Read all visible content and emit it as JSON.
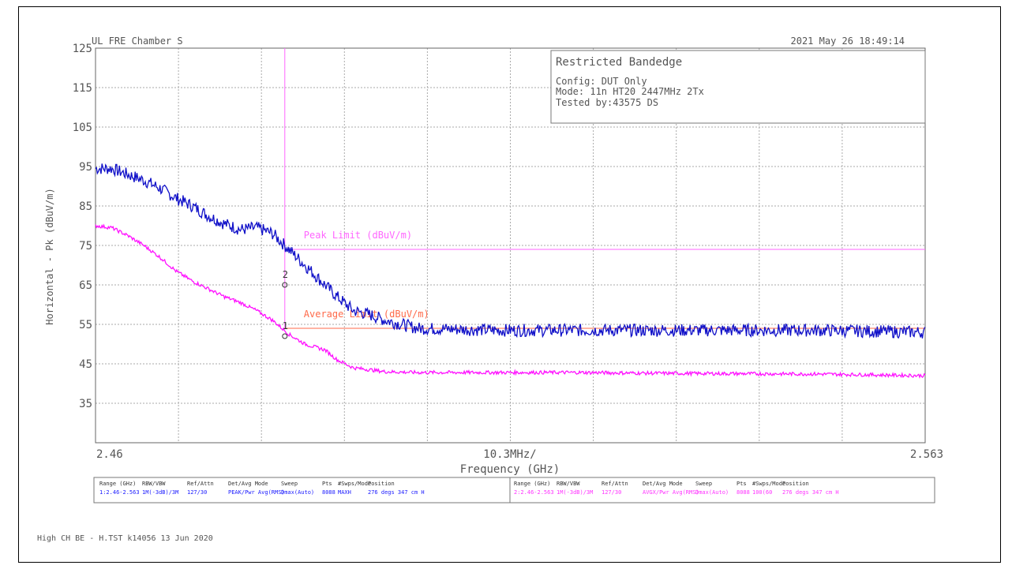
{
  "header": {
    "site": "UL FRE Chamber S",
    "datetime": "2021 May 26    18:49:14"
  },
  "infobox": {
    "title": "Restricted Bandedge",
    "lines": [
      "Config: DUT Only",
      "Mode: 11n HT20 2447MHz 2Tx",
      "Tested by:43575 DS"
    ]
  },
  "footer_note": "High CH BE - H.TST k14056 13 Jun 2020",
  "settings_table": {
    "headers": [
      "Range (GHz)",
      "RBW/VBW",
      "Ref/Attn",
      "Det/Avg Mode",
      "Sweep",
      "Pts",
      "#Swps/Mode",
      "Position"
    ],
    "rows": [
      {
        "color": "#1a1aff",
        "cells": [
          "1:2.46-2.563",
          "1M(-3dB)/3M",
          "127/30",
          "PEAK/Pwr Avg(RMS)",
          "Dmax(Auto)",
          "8088",
          "MAXH",
          "276 degs 347 cm H"
        ]
      },
      {
        "color": "#ff33ff",
        "cells": [
          "2:2.46-2.563",
          "1M(-3dB)/3M",
          "127/30",
          "AVGX/Pwr Avg(RMS)",
          "Dmax(Auto)",
          "8088",
          "100(60",
          "276 degs 347 cm H"
        ]
      }
    ]
  },
  "colors": {
    "peak_trace": "#1010c8",
    "avg_trace": "#ff10ff",
    "peak_limit": "#ff66ff",
    "avg_limit": "#ff6a4a",
    "grid": "#aaaaaa",
    "axis_text": "#555555"
  },
  "chart_data": {
    "type": "line",
    "title": "",
    "xlabel": "Frequency (GHz)",
    "ylabel": "Horizontal - Pk (dBuV/m)",
    "x_tick_labels": {
      "left": "2.46",
      "center": "10.3MHz/",
      "right": "2.563"
    },
    "xlim": [
      2.46,
      2.563
    ],
    "ylim": [
      25,
      125
    ],
    "yticks": [
      125,
      115,
      105,
      95,
      85,
      75,
      65,
      55,
      45,
      35
    ],
    "grid": true,
    "series": [
      {
        "color_key": "peak_trace",
        "x": [
          2.46,
          2.462,
          2.464,
          2.466,
          2.468,
          2.47,
          2.472,
          2.474,
          2.476,
          2.478,
          2.48,
          2.482,
          2.484,
          2.486,
          2.4885,
          2.49,
          2.492,
          2.494,
          2.496,
          2.5,
          2.51,
          2.52,
          2.53,
          2.54,
          2.55,
          2.563
        ],
        "values": [
          94.5,
          94.5,
          93,
          91.5,
          89.5,
          87,
          85,
          82.5,
          80.5,
          79,
          79.5,
          78,
          74,
          70,
          65,
          62,
          58.5,
          57.5,
          56,
          54,
          53.5,
          53.5,
          53.5,
          53.5,
          53.5,
          53
        ]
      },
      {
        "color_key": "avg_trace",
        "x": [
          2.46,
          2.462,
          2.464,
          2.466,
          2.468,
          2.47,
          2.472,
          2.474,
          2.476,
          2.478,
          2.48,
          2.482,
          2.484,
          2.486,
          2.4885,
          2.49,
          2.492,
          2.494,
          2.496,
          2.5,
          2.51,
          2.52,
          2.53,
          2.54,
          2.55,
          2.563
        ],
        "values": [
          80,
          79.5,
          77.5,
          75,
          72,
          68.5,
          66,
          64,
          62,
          60.5,
          58.5,
          56,
          52.5,
          50,
          48.5,
          46,
          44,
          43.5,
          43,
          42.8,
          42.8,
          42.8,
          42.6,
          42.5,
          42.4,
          42
        ]
      }
    ],
    "limit_lines": [
      {
        "label": "Peak Limit (dBuV/m)",
        "value": 74,
        "x_start": 2.4835,
        "color_key": "peak_limit"
      },
      {
        "label": "Average Limit (dBuV/m)",
        "value": 54,
        "x_start": 2.4835,
        "color_key": "avg_limit"
      }
    ],
    "band_edge_x": 2.4835,
    "markers": [
      {
        "label": "2",
        "x": 2.4835,
        "y": 66
      },
      {
        "label": "1",
        "x": 2.4835,
        "y": 53
      }
    ]
  }
}
